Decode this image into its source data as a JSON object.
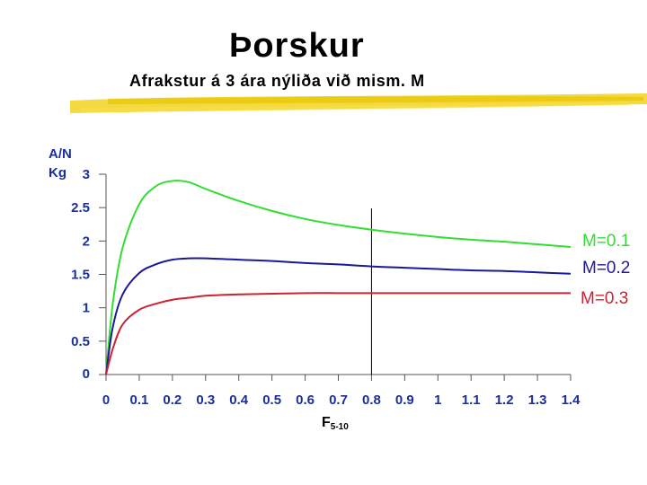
{
  "header": {
    "title": "Þorskur",
    "subtitle": "Afrakstur á 3 ára nýliða við mism. M"
  },
  "chart_data": {
    "type": "line",
    "ylabel": "A/N\nKg",
    "ylabel_line1": "A/N",
    "ylabel_line2": "Kg",
    "xlabel_main": "F",
    "xlabel_sub": "5-10",
    "xlim": [
      0,
      1.4
    ],
    "ylim": [
      0,
      3
    ],
    "x_ticks": [
      "0",
      "0.1",
      "0.2",
      "0.3",
      "0.4",
      "0.5",
      "0.6",
      "0.7",
      "0.8",
      "0.9",
      "1",
      "1.1",
      "1.2",
      "1.3",
      "1.4"
    ],
    "y_ticks": [
      "0",
      "0.5",
      "1",
      "1.5",
      "2",
      "2.5",
      "3"
    ],
    "reference_line_x": 0.8,
    "grid": false,
    "x": [
      0,
      0.02,
      0.05,
      0.1,
      0.15,
      0.2,
      0.25,
      0.3,
      0.4,
      0.5,
      0.6,
      0.7,
      0.8,
      0.9,
      1.0,
      1.1,
      1.2,
      1.3,
      1.4
    ],
    "series": [
      {
        "name": "M=0.1",
        "color": "#33dd33",
        "values": [
          0,
          1.05,
          1.9,
          2.55,
          2.82,
          2.9,
          2.88,
          2.78,
          2.6,
          2.45,
          2.33,
          2.24,
          2.17,
          2.11,
          2.06,
          2.02,
          1.99,
          1.95,
          1.91
        ]
      },
      {
        "name": "M=0.2",
        "color": "#1a1a99",
        "values": [
          0,
          0.7,
          1.2,
          1.52,
          1.65,
          1.72,
          1.74,
          1.74,
          1.72,
          1.7,
          1.67,
          1.65,
          1.62,
          1.6,
          1.58,
          1.56,
          1.55,
          1.53,
          1.51
        ]
      },
      {
        "name": "M=0.3",
        "color": "#cc2233",
        "values": [
          0,
          0.38,
          0.75,
          0.97,
          1.06,
          1.12,
          1.15,
          1.18,
          1.2,
          1.21,
          1.22,
          1.22,
          1.22,
          1.22,
          1.22,
          1.22,
          1.22,
          1.22,
          1.22
        ]
      }
    ]
  }
}
